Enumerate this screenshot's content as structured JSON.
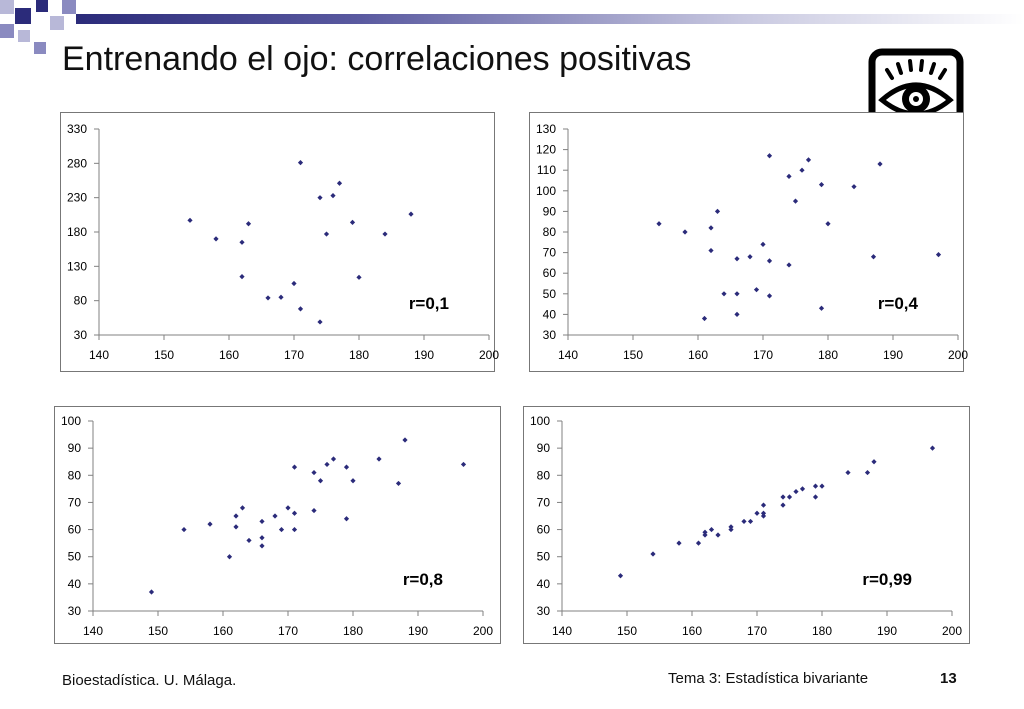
{
  "slide": {
    "title": "Entrenando el ojo: correlaciones positivas",
    "footer_left": "Bioestadística. U. Málaga.",
    "footer_center": "Tema 3: Estadística bivariante",
    "page_number": "13",
    "accent_color": "#2b2b7a",
    "icon": "eye-icon"
  },
  "chart_data": [
    {
      "type": "scatter",
      "annotation": "r=0,1",
      "xlim": [
        140,
        200
      ],
      "xticks": [
        140,
        150,
        160,
        170,
        180,
        190,
        200
      ],
      "ylim": [
        30,
        330
      ],
      "yticks": [
        30,
        80,
        130,
        180,
        230,
        280,
        330
      ],
      "points": [
        [
          154,
          197
        ],
        [
          158,
          170
        ],
        [
          162,
          165
        ],
        [
          162,
          115
        ],
        [
          163,
          192
        ],
        [
          166,
          84
        ],
        [
          168,
          85
        ],
        [
          170,
          105
        ],
        [
          171,
          281
        ],
        [
          171,
          68
        ],
        [
          174,
          230
        ],
        [
          174,
          49
        ],
        [
          175,
          177
        ],
        [
          176,
          233
        ],
        [
          177,
          251
        ],
        [
          179,
          194
        ],
        [
          180,
          114
        ],
        [
          184,
          177
        ],
        [
          188,
          206
        ]
      ]
    },
    {
      "type": "scatter",
      "annotation": "r=0,4",
      "xlim": [
        140,
        200
      ],
      "xticks": [
        140,
        150,
        160,
        170,
        180,
        190,
        200
      ],
      "ylim": [
        30,
        130
      ],
      "yticks": [
        30,
        40,
        50,
        60,
        70,
        80,
        90,
        100,
        110,
        120,
        130
      ],
      "points": [
        [
          154,
          84
        ],
        [
          158,
          80
        ],
        [
          161,
          38
        ],
        [
          162,
          82
        ],
        [
          162,
          71
        ],
        [
          163,
          90
        ],
        [
          164,
          50
        ],
        [
          166,
          67
        ],
        [
          166,
          50
        ],
        [
          166,
          40
        ],
        [
          168,
          68
        ],
        [
          169,
          52
        ],
        [
          170,
          74
        ],
        [
          171,
          117
        ],
        [
          171,
          66
        ],
        [
          171,
          49
        ],
        [
          174,
          107
        ],
        [
          174,
          64
        ],
        [
          175,
          95
        ],
        [
          176,
          110
        ],
        [
          177,
          115
        ],
        [
          179,
          103
        ],
        [
          179,
          43
        ],
        [
          180,
          84
        ],
        [
          184,
          102
        ],
        [
          187,
          68
        ],
        [
          188,
          113
        ],
        [
          197,
          69
        ]
      ]
    },
    {
      "type": "scatter",
      "annotation": "r=0,8",
      "xlim": [
        140,
        200
      ],
      "xticks": [
        140,
        150,
        160,
        170,
        180,
        190,
        200
      ],
      "ylim": [
        30,
        100
      ],
      "yticks": [
        30,
        40,
        50,
        60,
        70,
        80,
        90,
        100
      ],
      "points": [
        [
          149,
          37
        ],
        [
          154,
          60
        ],
        [
          158,
          62
        ],
        [
          161,
          50
        ],
        [
          162,
          65
        ],
        [
          162,
          61
        ],
        [
          163,
          68
        ],
        [
          164,
          56
        ],
        [
          166,
          63
        ],
        [
          166,
          57
        ],
        [
          166,
          54
        ],
        [
          168,
          65
        ],
        [
          169,
          60
        ],
        [
          170,
          68
        ],
        [
          171,
          83
        ],
        [
          171,
          66
        ],
        [
          171,
          60
        ],
        [
          174,
          81
        ],
        [
          174,
          67
        ],
        [
          175,
          78
        ],
        [
          176,
          84
        ],
        [
          177,
          86
        ],
        [
          179,
          83
        ],
        [
          179,
          64
        ],
        [
          180,
          78
        ],
        [
          184,
          86
        ],
        [
          187,
          77
        ],
        [
          188,
          93
        ],
        [
          197,
          84
        ]
      ]
    },
    {
      "type": "scatter",
      "annotation": "r=0,99",
      "xlim": [
        140,
        200
      ],
      "xticks": [
        140,
        150,
        160,
        170,
        180,
        190,
        200
      ],
      "ylim": [
        30,
        100
      ],
      "yticks": [
        30,
        40,
        50,
        60,
        70,
        80,
        90,
        100
      ],
      "points": [
        [
          149,
          43
        ],
        [
          154,
          51
        ],
        [
          158,
          55
        ],
        [
          161,
          55
        ],
        [
          162,
          59
        ],
        [
          162,
          58
        ],
        [
          163,
          60
        ],
        [
          164,
          58
        ],
        [
          166,
          61
        ],
        [
          166,
          60
        ],
        [
          168,
          63
        ],
        [
          169,
          63
        ],
        [
          170,
          66
        ],
        [
          171,
          69
        ],
        [
          171,
          66
        ],
        [
          171,
          65
        ],
        [
          174,
          72
        ],
        [
          174,
          69
        ],
        [
          175,
          72
        ],
        [
          176,
          74
        ],
        [
          177,
          75
        ],
        [
          179,
          76
        ],
        [
          179,
          72
        ],
        [
          180,
          76
        ],
        [
          184,
          81
        ],
        [
          187,
          81
        ],
        [
          188,
          85
        ],
        [
          197,
          90
        ]
      ]
    }
  ]
}
